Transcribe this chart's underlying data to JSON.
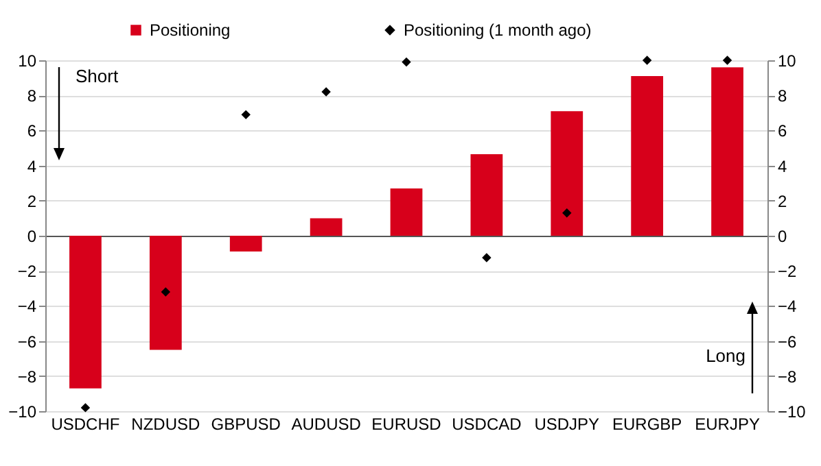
{
  "chart_data": {
    "type": "bar",
    "categories": [
      "USDCHF",
      "NZDUSD",
      "GBPUSD",
      "AUDUSD",
      "EURUSD",
      "USDCAD",
      "USDJPY",
      "EURGBP",
      "EURJPY"
    ],
    "series": [
      {
        "name": "Positioning",
        "color": "#d7001b",
        "values": [
          -8.7,
          -6.5,
          -0.9,
          1.0,
          2.7,
          4.65,
          7.1,
          9.1,
          9.6
        ]
      },
      {
        "name": "Positioning (1 month ago)",
        "type": "scatter",
        "color": "#000000",
        "values": [
          -9.8,
          -3.2,
          6.9,
          8.2,
          9.9,
          -1.25,
          1.3,
          10,
          10
        ]
      }
    ],
    "ylim": [
      -10,
      10
    ],
    "yticks": [
      -10,
      -8,
      -6,
      -4,
      -2,
      0,
      2,
      4,
      6,
      8,
      10
    ],
    "y2lim": [
      -10,
      10
    ],
    "y2ticks": [
      -10,
      -8,
      -6,
      -4,
      -2,
      0,
      2,
      4,
      6,
      8,
      10
    ],
    "annotations": [
      "Short",
      "Long"
    ],
    "grid": "y",
    "legend": "top",
    "marker": "diamond"
  }
}
